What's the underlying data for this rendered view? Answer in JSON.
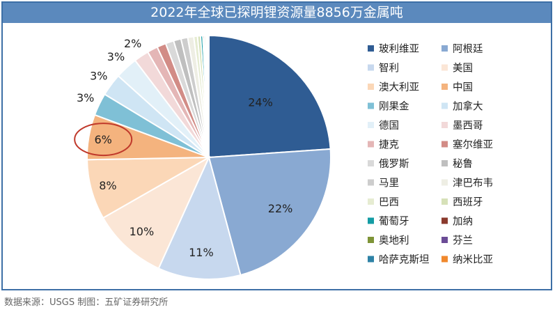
{
  "chart_data": {
    "type": "pie",
    "title": "2022年全球已探明锂资源量8856万金属吨",
    "source": "数据来源：USGS 制图：五矿证券研究所",
    "slices": [
      {
        "label": "玻利维亚",
        "value": 24,
        "display": "24%",
        "color": "#2f5c93"
      },
      {
        "label": "阿根廷",
        "value": 22,
        "display": "22%",
        "color": "#89a9d2"
      },
      {
        "label": "智利",
        "value": 11,
        "display": "11%",
        "color": "#c7d8ee"
      },
      {
        "label": "美国",
        "value": 10,
        "display": "10%",
        "color": "#fbe6d6"
      },
      {
        "label": "澳大利亚",
        "value": 8,
        "display": "8%",
        "color": "#fbd7b7"
      },
      {
        "label": "中国",
        "value": 6,
        "display": "6%",
        "color": "#f4b37e"
      },
      {
        "label": "刚果金",
        "value": 3,
        "display": "3%",
        "color": "#7fc0d6"
      },
      {
        "label": "加拿大",
        "value": 3,
        "display": "3%",
        "color": "#cfe5f4"
      },
      {
        "label": "德国",
        "value": 3,
        "display": "3%",
        "color": "#e2f0f8"
      },
      {
        "label": "墨西哥",
        "value": 2,
        "display": "2%",
        "color": "#f2d9d9"
      },
      {
        "label": "捷克",
        "value": 1.4,
        "display": "",
        "color": "#e4b6b6"
      },
      {
        "label": "塞尔维亚",
        "value": 1.2,
        "display": "",
        "color": "#d28c86"
      },
      {
        "label": "俄罗斯",
        "value": 1.1,
        "display": "",
        "color": "#d9d9d9"
      },
      {
        "label": "秘鲁",
        "value": 1,
        "display": "",
        "color": "#bfbfbf"
      },
      {
        "label": "马里",
        "value": 0.9,
        "display": "",
        "color": "#cdcdcd"
      },
      {
        "label": "津巴布韦",
        "value": 0.8,
        "display": "",
        "color": "#eeeee4"
      },
      {
        "label": "巴西",
        "value": 0.5,
        "display": "",
        "color": "#e6ecd2"
      },
      {
        "label": "西班牙",
        "value": 0.4,
        "display": "",
        "color": "#d6e1b8"
      },
      {
        "label": "葡萄牙",
        "value": 0.3,
        "display": "",
        "color": "#149ca4"
      },
      {
        "label": "加纳",
        "value": 0.2,
        "display": "",
        "color": "#8a3a2d"
      },
      {
        "label": "奥地利",
        "value": 0.2,
        "display": "",
        "color": "#7e9437"
      },
      {
        "label": "芬兰",
        "value": 0.15,
        "display": "",
        "color": "#6b4c96"
      },
      {
        "label": "哈萨克斯坦",
        "value": 0.15,
        "display": "",
        "color": "#2e82a6"
      },
      {
        "label": "纳米比亚",
        "value": 0.1,
        "display": "",
        "color": "#f0882d"
      }
    ],
    "highlight": "中国",
    "legend_placement": "right"
  }
}
